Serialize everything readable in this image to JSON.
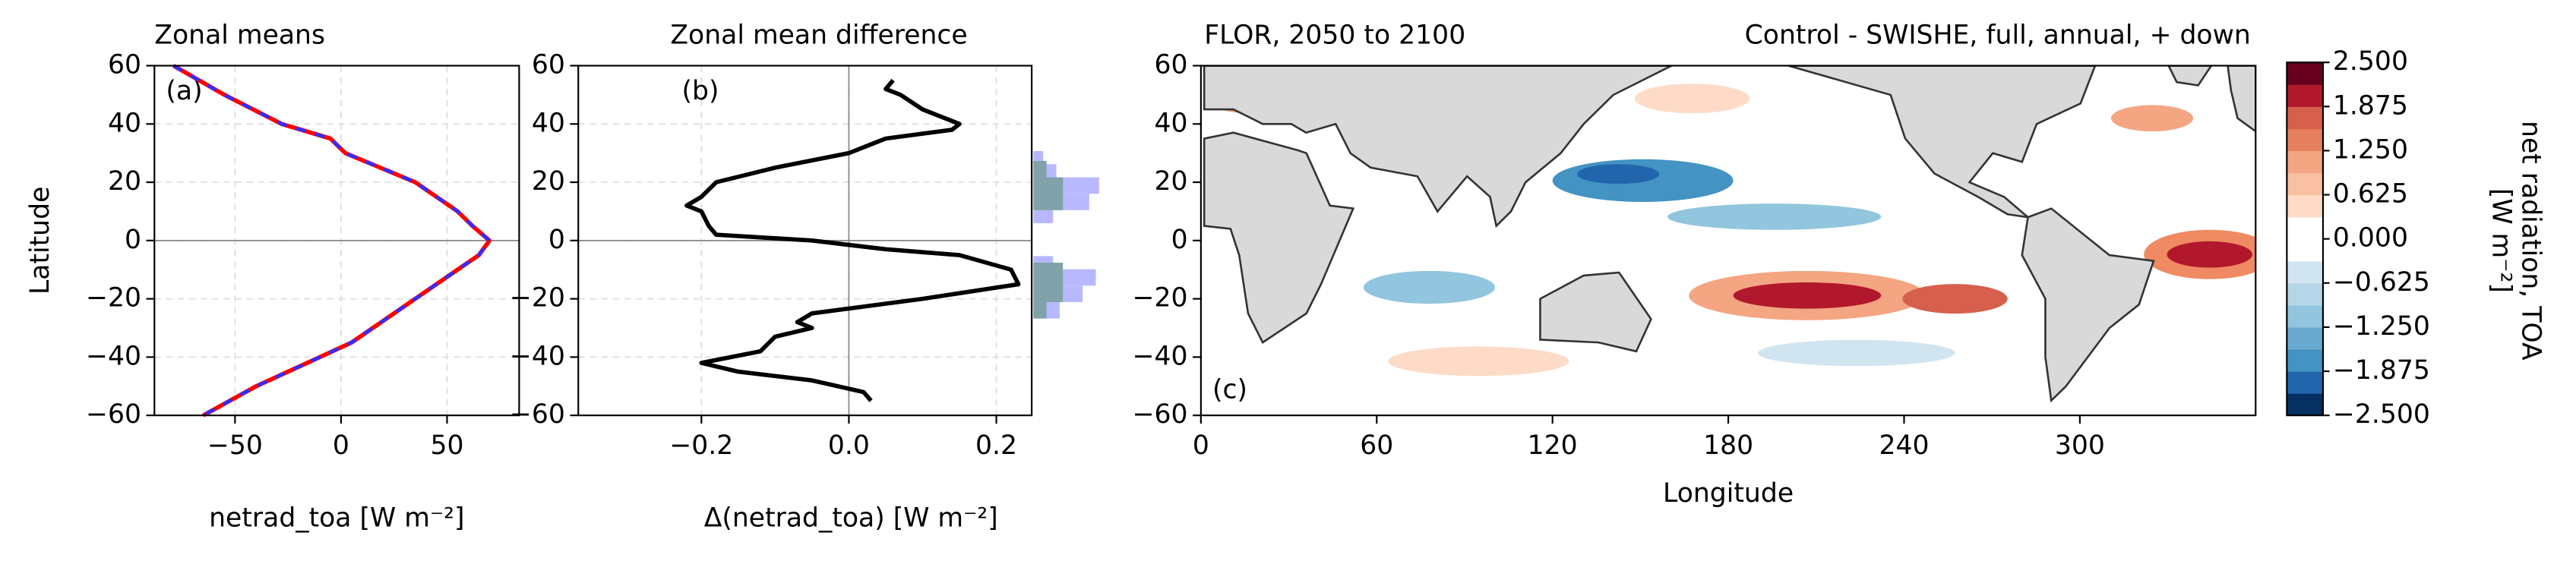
{
  "chart_data": [
    {
      "type": "line",
      "title": "Zonal means",
      "panel_label": "(a)",
      "xlabel": "netrad_toa [W m⁻²]",
      "ylabel": "Latitude",
      "y": [
        60,
        50,
        40,
        35,
        30,
        20,
        10,
        5,
        0,
        -5,
        -10,
        -20,
        -30,
        -35,
        -40,
        -50,
        -60
      ],
      "series": [
        {
          "color": "#ff0000",
          "linestyle": "solid",
          "values": [
            -79,
            -55,
            -28,
            -5,
            2,
            35,
            55,
            62,
            70,
            65,
            55,
            35,
            15,
            5,
            -10,
            -40,
            -65
          ]
        },
        {
          "color": "#2f2fff",
          "linestyle": "dashed",
          "values": [
            -79,
            -55,
            -28,
            -5,
            2,
            35,
            55,
            62,
            70,
            65,
            55,
            35,
            15,
            5,
            -10,
            -40,
            -65
          ]
        }
      ],
      "xlim": [
        -88,
        84
      ],
      "ylim": [
        -60,
        60
      ],
      "xticks": [
        {
          "value": -50,
          "label": "−50"
        },
        0,
        50
      ],
      "yticks": [
        {
          "value": -60,
          "label": "−60"
        },
        {
          "value": -40,
          "label": "−40"
        },
        {
          "value": -20,
          "label": "−20"
        },
        0,
        20,
        40,
        60
      ],
      "grid": true
    },
    {
      "type": "line",
      "title": "Zonal mean difference",
      "panel_label": "(b)",
      "xlabel": "Δ(netrad_toa) [W m⁻²]",
      "y": [
        55,
        52,
        50,
        45,
        40,
        38,
        35,
        30,
        25,
        20,
        15,
        12,
        10,
        5,
        2,
        0,
        -3,
        -5,
        -10,
        -15,
        -20,
        -25,
        -28,
        -30,
        -33,
        -38,
        -42,
        -45,
        -48,
        -52,
        -55
      ],
      "series": [
        {
          "color": "#000000",
          "linestyle": "solid",
          "values": [
            0.06,
            0.05,
            0.07,
            0.1,
            0.15,
            0.14,
            0.05,
            0.0,
            -0.1,
            -0.18,
            -0.2,
            -0.22,
            -0.2,
            -0.19,
            -0.18,
            -0.05,
            0.05,
            0.15,
            0.22,
            0.23,
            0.1,
            -0.05,
            -0.07,
            -0.05,
            -0.1,
            -0.12,
            -0.2,
            -0.15,
            -0.05,
            0.02,
            0.03
          ]
        }
      ],
      "xlim": [
        -0.367,
        0.248
      ],
      "ylim": [
        -60,
        60
      ],
      "xticks": [
        {
          "value": -0.2,
          "label": "−0.2"
        },
        {
          "value": 0,
          "label": "0.0"
        },
        0.2
      ],
      "yticks": [
        {
          "value": -60,
          "label": "−60"
        },
        {
          "value": -40,
          "label": "−40"
        },
        {
          "value": -20,
          "label": "−20"
        },
        0,
        20,
        40,
        60
      ],
      "grid": true
    },
    {
      "type": "map",
      "title": "FLOR, 2050 to 2100",
      "title_right": "Control - SWISHE, full, annual, + down",
      "panel_label": "(c)",
      "xlabel": "Longitude",
      "xlim": [
        0,
        360
      ],
      "ylim": [
        -60,
        60
      ],
      "xticks": [
        0,
        60,
        120,
        180,
        240,
        300
      ],
      "yticks": [
        {
          "value": -60,
          "label": "−60"
        },
        {
          "value": -40,
          "label": "−40"
        },
        {
          "value": -20,
          "label": "−20"
        },
        0,
        20,
        40,
        60
      ],
      "colorbar_label": [
        "net radiation, TOA",
        "[W m⁻²]"
      ],
      "clim": [
        -2.5,
        2.5
      ],
      "colors": [
        "#053061",
        "#2166ac",
        "#4393c3",
        "#6aa9d0",
        "#92c5de",
        "#b5d6e8",
        "#d1e5f0",
        "#ffffff",
        "#ffffff",
        "#fddbc7",
        "#f9c0a3",
        "#f4a582",
        "#e7805f",
        "#d6604d",
        "#b2182b",
        "#67001f"
      ],
      "cticks": [
        {
          "value": -2.5,
          "label": "−2.500"
        },
        {
          "value": -1.875,
          "label": "−1.875"
        },
        {
          "value": -1.25,
          "label": "−1.250"
        },
        {
          "value": -0.625,
          "label": "−0.625"
        },
        {
          "value": 0,
          "label": "0.000"
        },
        {
          "value": 0.625,
          "label": "0.625"
        },
        {
          "value": 1.25,
          "label": "1.250"
        },
        {
          "value": 1.875,
          "label": "1.875"
        },
        {
          "value": 2.5,
          "label": "2.500"
        }
      ]
    }
  ]
}
